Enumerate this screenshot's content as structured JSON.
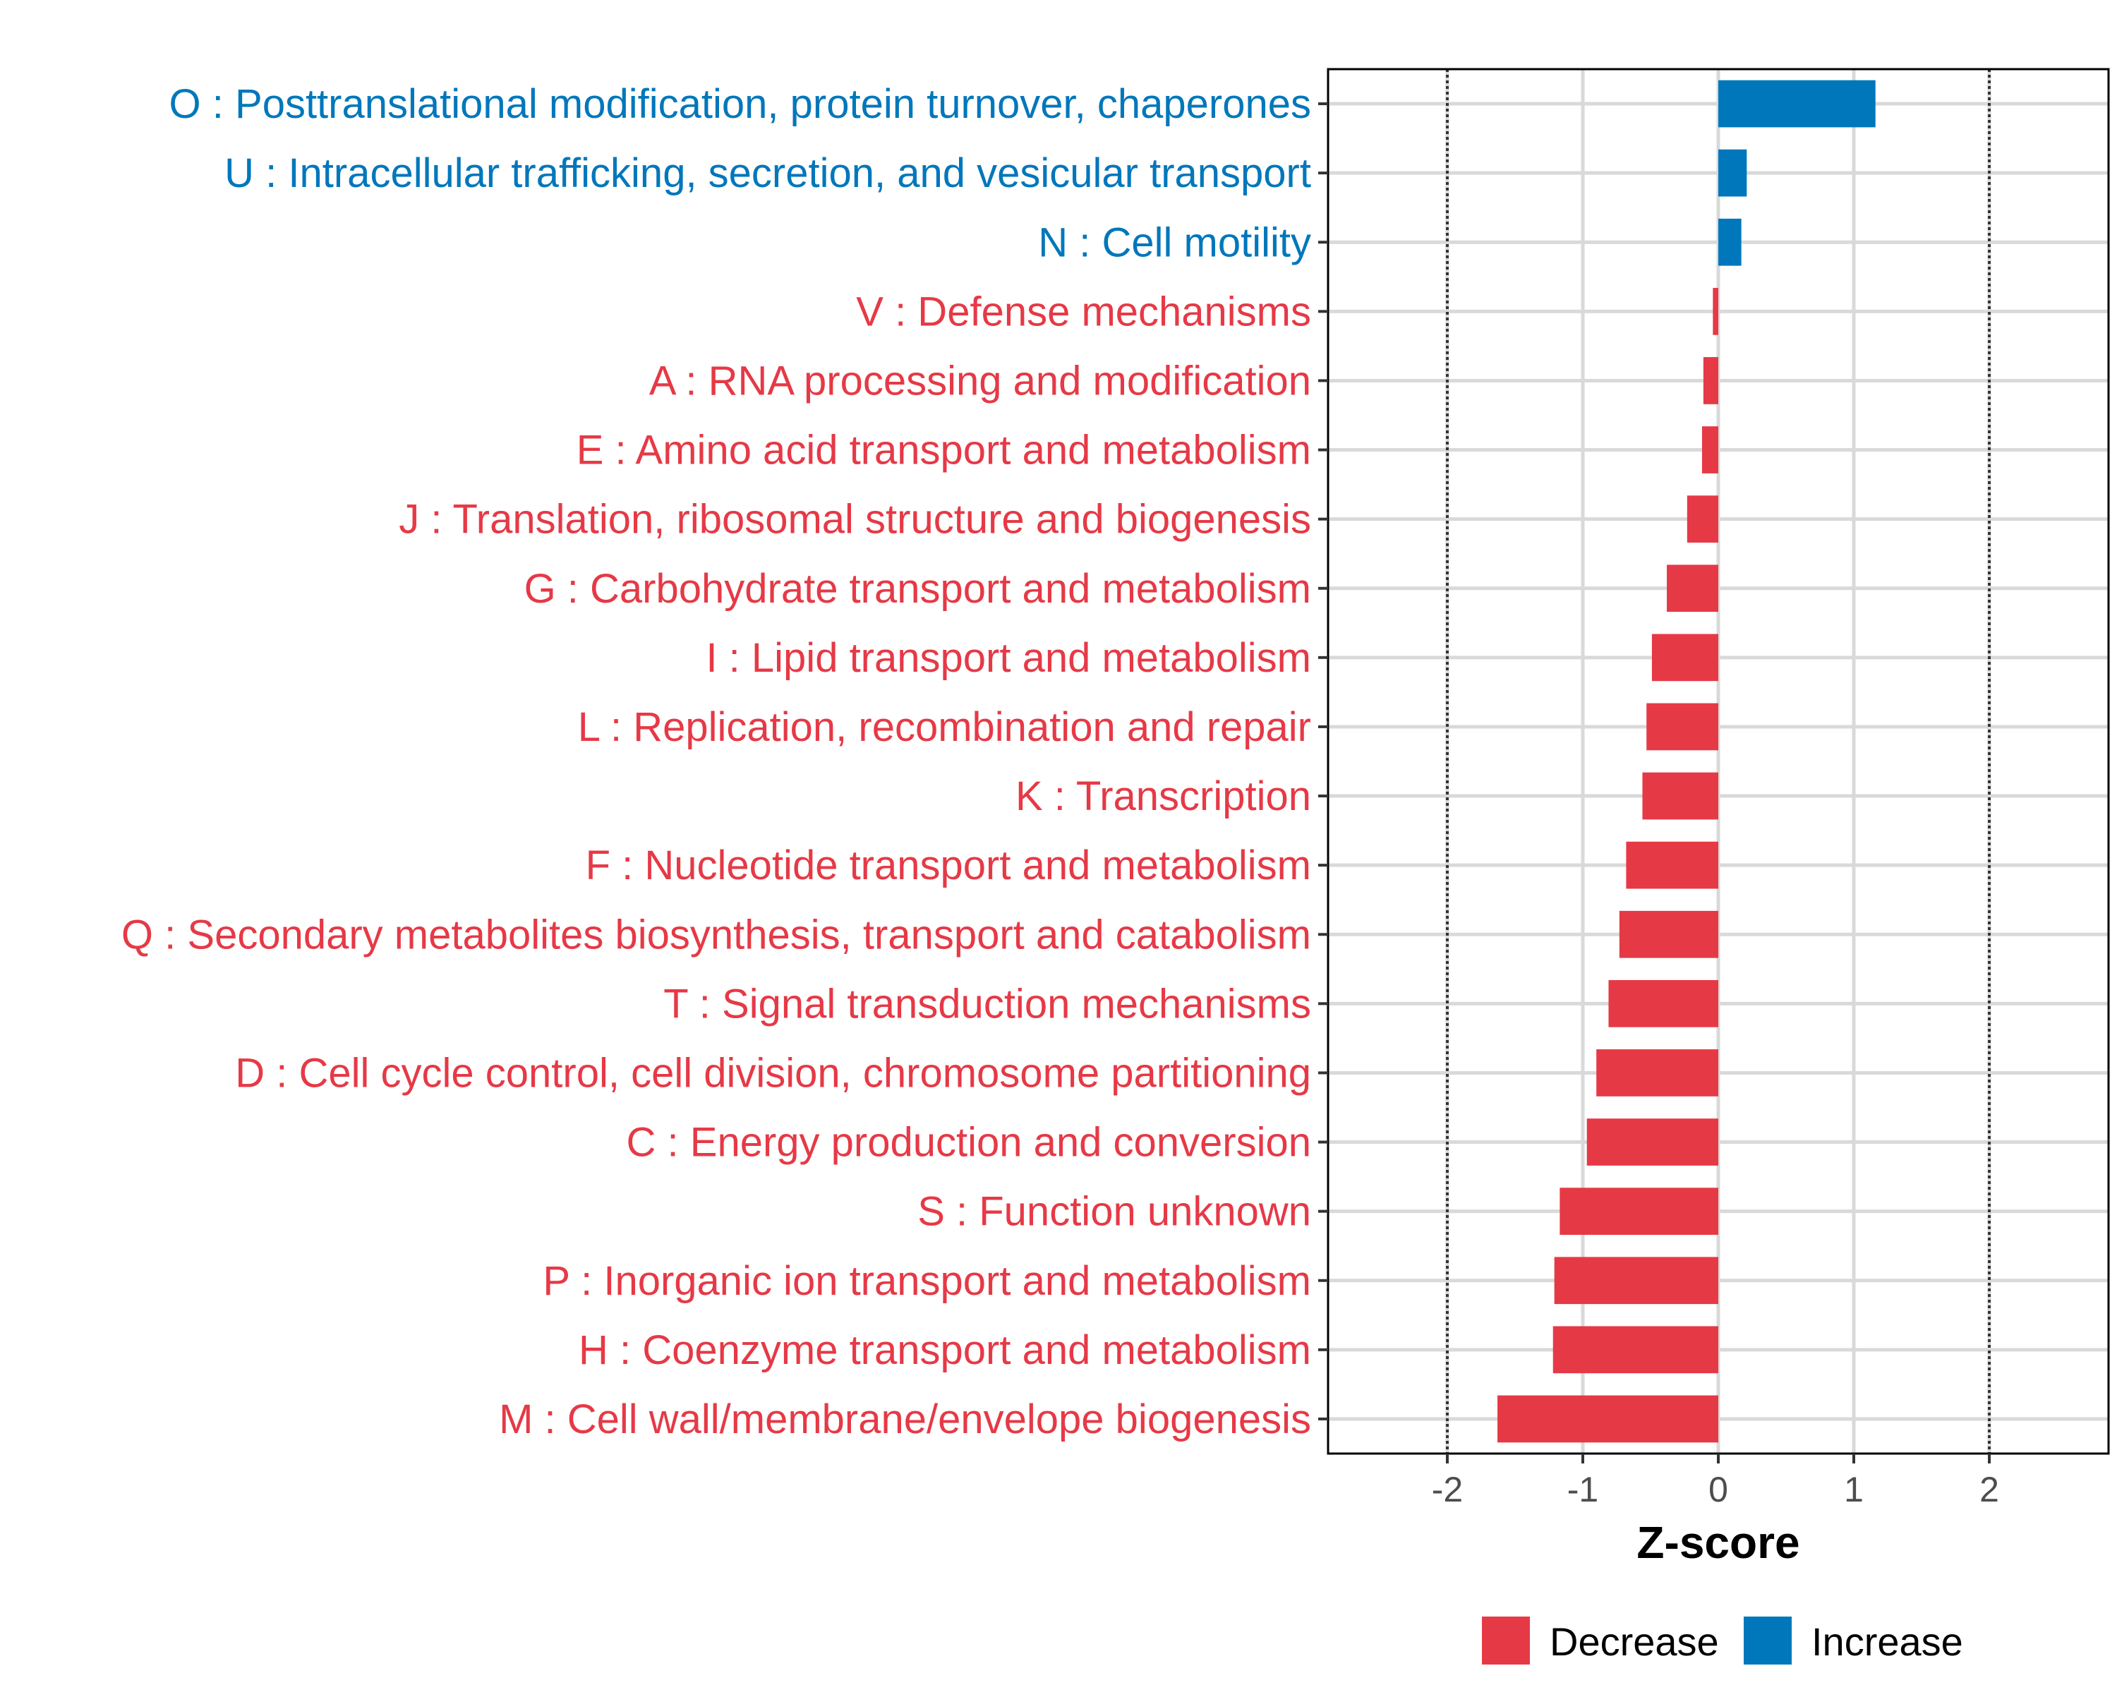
{
  "colors": {
    "decrease": "#E63946",
    "increase": "#0077BB",
    "grid": "#D9D9D9",
    "refline": "#333333",
    "panel_border": "#000000",
    "axis_text": "#4D4D4D"
  },
  "chart_data": {
    "type": "bar",
    "orientation": "horizontal",
    "title": "",
    "xlabel": "Z-score",
    "ylabel": "",
    "xlim": [
      -2.88,
      2.88
    ],
    "xticks": [
      -2,
      -1,
      0,
      1,
      2
    ],
    "xtick_labels": [
      "-2",
      "-1",
      "0",
      "1",
      "2"
    ],
    "reference_lines": [
      -2,
      2
    ],
    "grid": true,
    "legend": {
      "placement": "bottom",
      "entries": [
        {
          "key": "decrease",
          "label": "Decrease"
        },
        {
          "key": "increase",
          "label": "Increase"
        }
      ]
    },
    "categories": [
      "O : Posttranslational modification, protein turnover, chaperones",
      "U : Intracellular trafficking, secretion, and vesicular transport",
      "N : Cell motility",
      "V : Defense mechanisms",
      "A : RNA processing and modification",
      "E : Amino acid transport and metabolism",
      "J : Translation, ribosomal structure and biogenesis",
      "G : Carbohydrate transport and metabolism",
      "I : Lipid transport and metabolism",
      "L : Replication, recombination and repair",
      "K : Transcription",
      "F : Nucleotide transport and metabolism",
      "Q : Secondary metabolites biosynthesis, transport and catabolism",
      "T : Signal transduction mechanisms",
      "D : Cell cycle control, cell division, chromosome partitioning",
      "C : Energy production and conversion",
      "S : Function unknown",
      "P : Inorganic ion transport and metabolism",
      "H : Coenzyme transport and metabolism",
      "M : Cell wall/membrane/envelope biogenesis"
    ],
    "values": [
      1.16,
      0.21,
      0.17,
      -0.04,
      -0.11,
      -0.12,
      -0.23,
      -0.38,
      -0.49,
      -0.53,
      -0.56,
      -0.68,
      -0.73,
      -0.81,
      -0.9,
      -0.97,
      -1.17,
      -1.21,
      -1.22,
      -1.63
    ],
    "groups": [
      "increase",
      "increase",
      "increase",
      "decrease",
      "decrease",
      "decrease",
      "decrease",
      "decrease",
      "decrease",
      "decrease",
      "decrease",
      "decrease",
      "decrease",
      "decrease",
      "decrease",
      "decrease",
      "decrease",
      "decrease",
      "decrease",
      "decrease"
    ]
  }
}
